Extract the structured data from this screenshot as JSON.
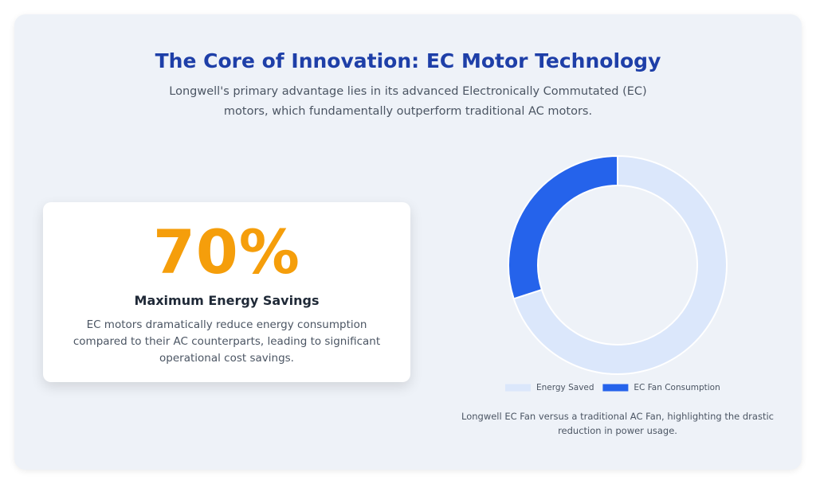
{
  "header": {
    "title": "The Core of Innovation: EC Motor Technology",
    "subtitle": "Longwell's primary advantage lies in its advanced Electronically Commutated (EC) motors, which fundamentally outperform traditional AC motors."
  },
  "stat_card": {
    "value": "70%",
    "heading": "Maximum Energy Savings",
    "description": "EC motors dramatically reduce energy consumption compared to their AC counterparts, leading to significant operational cost savings."
  },
  "chart_data": {
    "type": "doughnut",
    "categories": [
      "Energy Saved",
      "EC Fan Consumption"
    ],
    "values": [
      70,
      30
    ],
    "colors": [
      "#dbe7fb",
      "#2563eb"
    ],
    "legend": "bottom"
  },
  "chart_caption": "Longwell EC Fan versus a traditional AC Fan, highlighting the drastic reduction in power usage."
}
